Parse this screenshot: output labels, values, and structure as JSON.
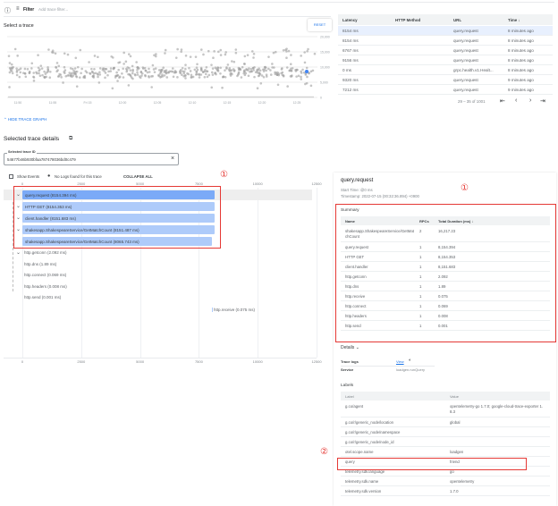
{
  "filter_bar": {
    "help_icon": "help-circle-icon",
    "filter_label": "Filter",
    "placeholder": "Add trace filter..."
  },
  "trace_graph": {
    "title": "Select a trace",
    "reset_label": "RESET",
    "y_ticks": [
      "20,000",
      "15,000",
      "10,000",
      "5,000",
      "0"
    ],
    "x_ticks": [
      "11:50",
      "11:55",
      "Fri 15",
      "12:00",
      "12:05",
      "12:10",
      "12:15",
      "12:20",
      "12:25"
    ],
    "point_color": "#9e9e9e",
    "selected_color": "#4285f4",
    "hide_label": "HIDE TRACE GRAPH"
  },
  "trace_table": {
    "columns": [
      "Latency",
      "HTTP Method",
      "URL",
      "Time"
    ],
    "rows": [
      {
        "latency": "8154 ms",
        "method": "",
        "url": "query.request",
        "time": "8 minutes ago"
      },
      {
        "latency": "8154 ms",
        "method": "",
        "url": "query.request",
        "time": "8 minutes ago"
      },
      {
        "latency": "6767 ms",
        "method": "",
        "url": "query.request",
        "time": "8 minutes ago"
      },
      {
        "latency": "9156 ms",
        "method": "",
        "url": "query.request",
        "time": "8 minutes ago"
      },
      {
        "latency": "0 ms",
        "method": "",
        "url": "grpc.health.v1.Healt...",
        "time": "8 minutes ago"
      },
      {
        "latency": "9320 ms",
        "method": "",
        "url": "query.request",
        "time": "9 minutes ago"
      },
      {
        "latency": "7212 ms",
        "method": "",
        "url": "query.request",
        "time": "9 minutes ago"
      }
    ],
    "pagination": "29 – 35 of 1001"
  },
  "details": {
    "title": "Selected trace details",
    "trace_id_label": "Selected trace ID",
    "trace_id": "54677b46b930bfaa787478036bd0c479",
    "show_events": "Show Events",
    "no_logs": "No Logs found for this trace",
    "collapse_all": "COLLAPSE ALL",
    "axis_ticks": [
      "0",
      "2500",
      "5000",
      "7500",
      "10000",
      "12500"
    ],
    "annotation_1": "①",
    "annotation_2": "②",
    "spans": [
      "query.request (8154.394 ms)",
      "HTTP GET (8154.353 ms)",
      "client.handler (8151.683 ms)",
      "shakesapp.ShakespeareService/GetMatchCount (8151.487 ms)",
      "shakesapp.ShakespeareService/GetMatchCount (8065.743 ms)",
      "http.getconn (2.092 ms)",
      "http.dns (1.89 ms)",
      "http.connect (0.069 ms)",
      "http.headers (0.008 ms)",
      "http.send (0.001 ms)",
      "http.receive (0.075 ms)"
    ]
  },
  "span_panel": {
    "name": "query.request",
    "start_time": "Start Time: @0 ms",
    "timestamp": "Timestamp: 2022-07-15 (00:32:36.894) +0900",
    "summary_title": "Summary",
    "summary_columns": [
      "Name",
      "RPCs",
      "Total Duration (ms)"
    ],
    "summary_rows": [
      {
        "name": "shakesapp.ShakespeareService/GetMatchCount",
        "rpcs": "2",
        "dur": "16,217.23"
      },
      {
        "name": "query.request",
        "rpcs": "1",
        "dur": "8,154.394"
      },
      {
        "name": "HTTP GET",
        "rpcs": "1",
        "dur": "8,154.353"
      },
      {
        "name": "client.handler",
        "rpcs": "1",
        "dur": "8,151.683"
      },
      {
        "name": "http.getconn",
        "rpcs": "1",
        "dur": "2.092"
      },
      {
        "name": "http.dns",
        "rpcs": "1",
        "dur": "1.89"
      },
      {
        "name": "http.receive",
        "rpcs": "1",
        "dur": "0.075"
      },
      {
        "name": "http.connect",
        "rpcs": "1",
        "dur": "0.069"
      },
      {
        "name": "http.headers",
        "rpcs": "1",
        "dur": "0.008"
      },
      {
        "name": "http.send",
        "rpcs": "1",
        "dur": "0.001"
      }
    ],
    "details_title": "Details",
    "trace_logs_label": "Trace logs",
    "trace_logs_link": "View",
    "service_label": "Service",
    "service_value": "loadgen.runQuery",
    "labels_title": "Labels",
    "labels_columns": [
      "Label",
      "Value"
    ],
    "labels_rows": [
      {
        "label": "g.co/agent",
        "value": "opentelemetry-go 1.7.0; google-cloud-trace-exporter 1.8.3"
      },
      {
        "label": "g.co/r/generic_node/location",
        "value": "global"
      },
      {
        "label": "g.co/r/generic_node/namespace",
        "value": ""
      },
      {
        "label": "g.co/r/generic_node/node_id",
        "value": ""
      },
      {
        "label": "otel.scope.name",
        "value": "loadgen"
      },
      {
        "label": "query",
        "value": "friend"
      },
      {
        "label": "telemetry.sdk.language",
        "value": "go"
      },
      {
        "label": "telemetry.sdk.name",
        "value": "opentelemetry"
      },
      {
        "label": "telemetry.sdk.version",
        "value": "1.7.0"
      }
    ]
  }
}
